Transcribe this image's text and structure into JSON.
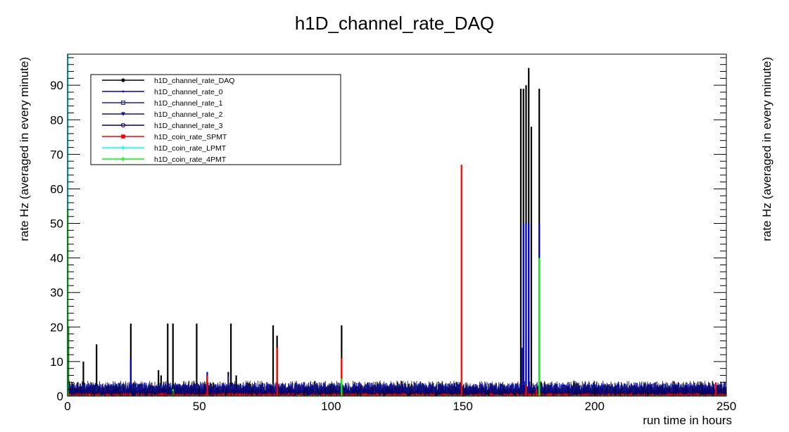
{
  "chart_data": {
    "type": "line",
    "title": "h1D_channel_rate_DAQ",
    "xlabel": "run time in hours",
    "ylabel": "rate Hz (averaged in every minute)",
    "ylabel_right": "rate Hz (averaged in every minute)",
    "xlim": [
      0,
      250
    ],
    "ylim": [
      0,
      99
    ],
    "x_ticks": [
      0,
      50,
      100,
      150,
      200,
      250
    ],
    "y_ticks": [
      0,
      10,
      20,
      30,
      40,
      50,
      60,
      70,
      80,
      90
    ],
    "legend_position": "top-left",
    "grid": false,
    "series": [
      {
        "name": "h1D_channel_rate_DAQ",
        "color": "#000000",
        "marker": "circle",
        "baseline": [
          1.5,
          4.5
        ],
        "spikes": [
          [
            0.3,
            20
          ],
          [
            6,
            10
          ],
          [
            11,
            15
          ],
          [
            24,
            21
          ],
          [
            34.5,
            7.5
          ],
          [
            35.5,
            6
          ],
          [
            38,
            21
          ],
          [
            40,
            21
          ],
          [
            49,
            21
          ],
          [
            53,
            6
          ],
          [
            61,
            7
          ],
          [
            62,
            21
          ],
          [
            64,
            6
          ],
          [
            78,
            20.5
          ],
          [
            79.5,
            17.5
          ],
          [
            104,
            20.5
          ],
          [
            172,
            89
          ],
          [
            173,
            89
          ],
          [
            174,
            90
          ],
          [
            175,
            95
          ],
          [
            176,
            78
          ],
          [
            179,
            89
          ]
        ]
      },
      {
        "name": "h1D_channel_rate_0",
        "color": "#0000cc",
        "marker": "dot",
        "baseline": [
          1.0,
          4.0
        ],
        "spikes": [
          [
            24,
            11
          ],
          [
            53,
            7
          ],
          [
            173,
            50
          ],
          [
            174,
            50
          ],
          [
            175,
            50
          ],
          [
            179,
            50
          ]
        ]
      },
      {
        "name": "h1D_channel_rate_1",
        "color": "#1f1f99",
        "marker": "open-square",
        "baseline": [
          1.0,
          3.8
        ],
        "spikes": [
          [
            61,
            6
          ],
          [
            172.5,
            14
          ]
        ]
      },
      {
        "name": "h1D_channel_rate_2",
        "color": "#15157a",
        "marker": "triangle",
        "baseline": [
          1.0,
          3.5
        ],
        "spikes": []
      },
      {
        "name": "h1D_channel_rate_3",
        "color": "#000066",
        "marker": "open-circle",
        "baseline": [
          0.8,
          3.2
        ],
        "spikes": []
      },
      {
        "name": "h1D_coin_rate_SPMT",
        "color": "#ff0000",
        "marker": "square",
        "baseline": [
          0.0,
          1.0
        ],
        "spikes": [
          [
            53,
            6
          ],
          [
            79.5,
            14
          ],
          [
            104,
            11
          ],
          [
            149.5,
            67
          ],
          [
            174,
            3
          ],
          [
            178,
            2
          ],
          [
            246,
            4
          ]
        ]
      },
      {
        "name": "h1D_coin_rate_LPMT",
        "color": "#00ffff",
        "marker": "star",
        "baseline": [
          0.0,
          0.0
        ],
        "spikes": [
          [
            0.1,
            99
          ]
        ]
      },
      {
        "name": "h1D_coin_rate_4PMT",
        "color": "#00ff00",
        "marker": "star",
        "baseline": [
          0.0,
          0.3
        ],
        "spikes": [
          [
            0.1,
            54
          ],
          [
            40,
            2
          ],
          [
            104,
            5
          ],
          [
            179,
            40
          ]
        ]
      }
    ]
  }
}
